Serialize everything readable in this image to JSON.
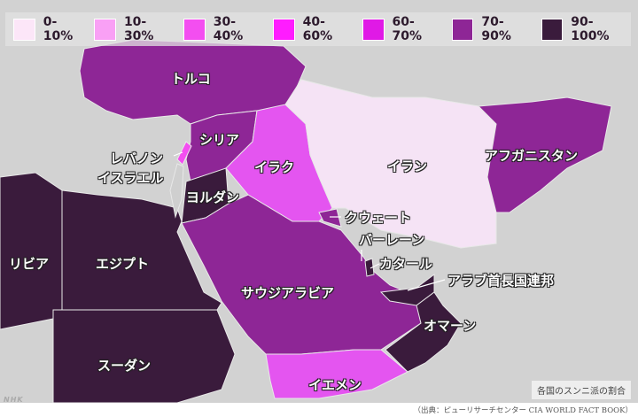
{
  "legend": [
    {
      "label": "0-10%",
      "color": "#fce6f8"
    },
    {
      "label": "10-30%",
      "color": "#f9a0f5"
    },
    {
      "label": "30-40%",
      "color": "#f34ef0"
    },
    {
      "label": "40-60%",
      "color": "#ff1cff"
    },
    {
      "label": "60-70%",
      "color": "#e019e6"
    },
    {
      "label": "70-90%",
      "color": "#8e2696"
    },
    {
      "label": "90-100%",
      "color": "#3a1b3c"
    }
  ],
  "countries": {
    "turkey": {
      "name": "トルコ",
      "range": "70-90%"
    },
    "syria": {
      "name": "シリア",
      "range": "70-90%"
    },
    "lebanon": {
      "name": "レバノン",
      "range": "30-40%"
    },
    "israel": {
      "name": "イスラエル",
      "range": "0-10%"
    },
    "jordan": {
      "name": "ヨルダン",
      "range": "90-100%"
    },
    "iraq": {
      "name": "イラク",
      "range": "30-40%"
    },
    "iran": {
      "name": "イラン",
      "range": "0-10%"
    },
    "afghanistan": {
      "name": "アフガニスタン",
      "range": "70-90%"
    },
    "kuwait": {
      "name": "クウェート",
      "range": "70-90%"
    },
    "bahrain": {
      "name": "バーレーン",
      "range": ""
    },
    "qatar": {
      "name": "カタール",
      "range": "90-100%"
    },
    "uae": {
      "name": "アラブ首長国連邦",
      "range": "90-100%"
    },
    "saudi": {
      "name": "サウジアラビア",
      "range": "70-90%"
    },
    "oman": {
      "name": "オマーン",
      "range": "90-100%"
    },
    "yemen": {
      "name": "イエメン",
      "range": "30-40%"
    },
    "egypt": {
      "name": "エジプト",
      "range": "90-100%"
    },
    "libya": {
      "name": "リビア",
      "range": "90-100%"
    },
    "sudan": {
      "name": "スーダン",
      "range": "90-100%"
    }
  },
  "caption": "各国のスンニ派の割合",
  "source": "（出典：ピューリサーチセンター CIA WORLD FACT BOOK）",
  "logo": "NHK"
}
